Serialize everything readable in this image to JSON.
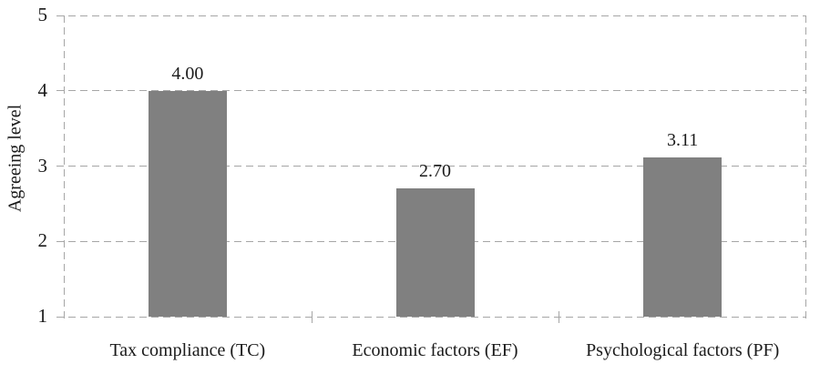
{
  "chart_data": {
    "type": "bar",
    "title": "",
    "xlabel": "",
    "ylabel": "Agreeing level",
    "categories": [
      "Tax compliance (TC)",
      "Economic factors (EF)",
      "Psychological factors (PF)"
    ],
    "values": [
      4.0,
      2.7,
      3.11
    ],
    "data_labels": [
      "4.00",
      "2.70",
      "3.11"
    ],
    "ylim": [
      1,
      5
    ],
    "yticks": [
      1,
      2,
      3,
      4,
      5
    ],
    "grid": "dashed horizontal gridlines at each y tick, dashed left and right plot borders, no legend",
    "legend": "none",
    "bar_color": "#808080",
    "gridline_color": "#a6a6a6",
    "text_color": "#1a1a1a",
    "background_color": "#ffffff"
  }
}
